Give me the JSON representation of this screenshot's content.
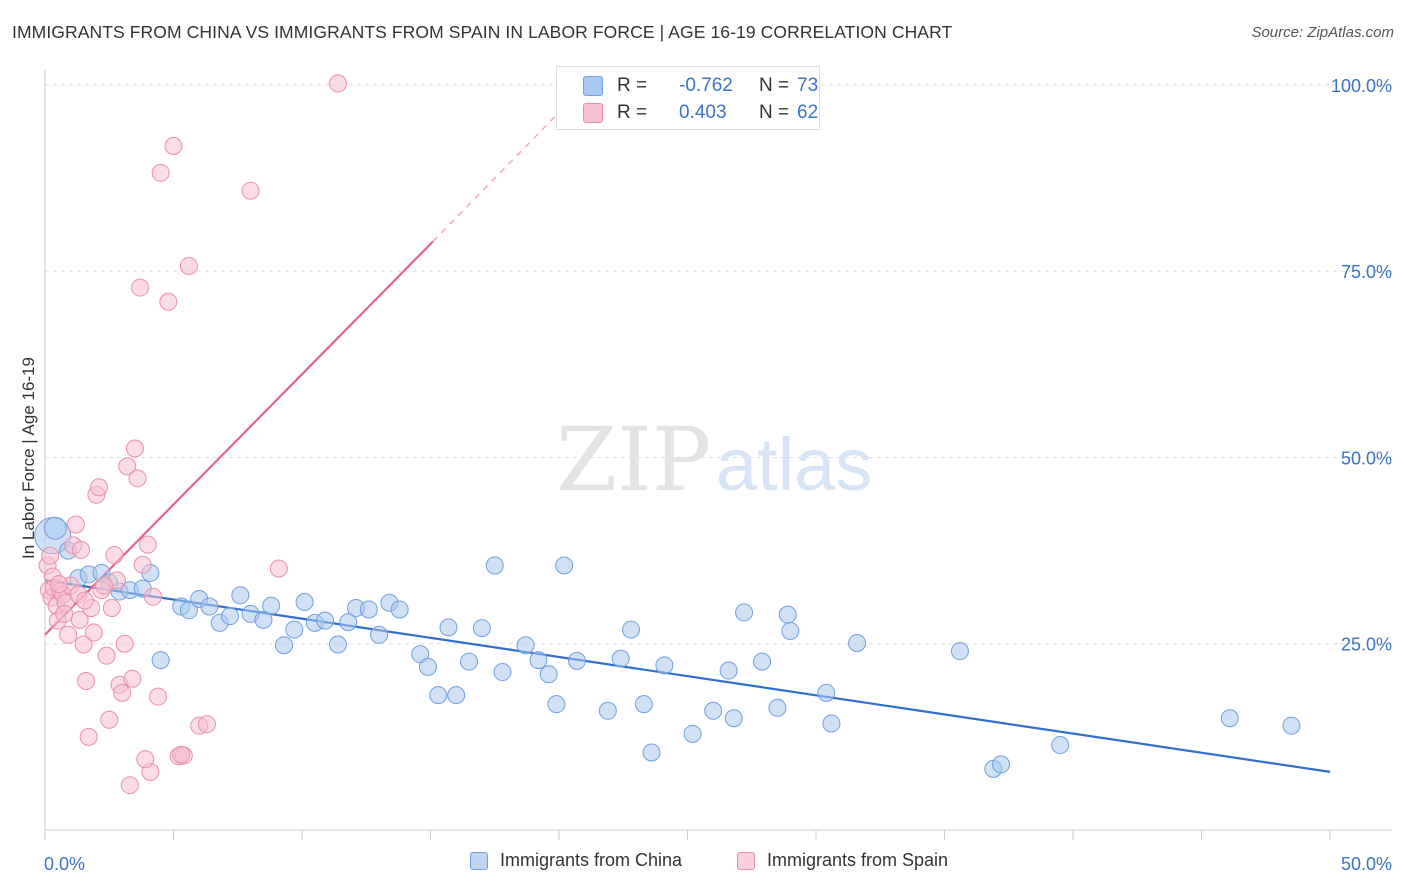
{
  "title": "IMMIGRANTS FROM CHINA VS IMMIGRANTS FROM SPAIN IN LABOR FORCE | AGE 16-19 CORRELATION CHART",
  "source": "Source: ZipAtlas.com",
  "watermark": {
    "zip": "ZIP",
    "atlas": "atlas"
  },
  "legend_top": {
    "rows": [
      {
        "r_label": "R =",
        "r_value": "-0.762",
        "n_label": "N =",
        "n_value": "73",
        "color": "#a9c8ef",
        "border": "#6fa0dd"
      },
      {
        "r_label": "R =",
        "r_value": "0.403",
        "n_label": "N =",
        "n_value": "62",
        "color": "#f7c0d0",
        "border": "#ea8fab"
      }
    ]
  },
  "legend_bottom": {
    "items": [
      {
        "label": "Immigrants from China",
        "color": "#bcd5f3",
        "border": "#6fa0dd"
      },
      {
        "label": "Immigrants from Spain",
        "color": "#f9cfdc",
        "border": "#ea8fab"
      }
    ]
  },
  "chart_data": {
    "type": "scatter",
    "title": "IMMIGRANTS FROM CHINA VS IMMIGRANTS FROM SPAIN IN LABOR FORCE | AGE 16-19 CORRELATION CHART",
    "xlabel": "",
    "ylabel": "In Labor Force | Age 16-19",
    "xlim": [
      0,
      50
    ],
    "ylim": [
      0,
      102
    ],
    "x_tick_labels": [
      "0.0%",
      "50.0%"
    ],
    "y_ticks": [
      25,
      50,
      75,
      100
    ],
    "y_tick_labels": [
      "25.0%",
      "50.0%",
      "75.0%",
      "100.0%"
    ],
    "grid": true,
    "series": [
      {
        "name": "Immigrants from China",
        "color": "#6fa0dd",
        "fill": "#a9c8ef",
        "points": [
          [
            0.3,
            39.5
          ],
          [
            0.4,
            40.5
          ],
          [
            0.9,
            37.5
          ],
          [
            1.3,
            33.8
          ],
          [
            1.7,
            34.3
          ],
          [
            2.2,
            34.5
          ],
          [
            2.5,
            33.2
          ],
          [
            2.9,
            32.0
          ],
          [
            3.3,
            32.2
          ],
          [
            3.8,
            32.4
          ],
          [
            4.1,
            34.5
          ],
          [
            4.5,
            22.8
          ],
          [
            5.3,
            30.0
          ],
          [
            5.6,
            29.5
          ],
          [
            6.0,
            31.0
          ],
          [
            6.4,
            30.0
          ],
          [
            6.8,
            27.8
          ],
          [
            7.2,
            28.7
          ],
          [
            7.6,
            31.5
          ],
          [
            8.0,
            29.0
          ],
          [
            8.5,
            28.2
          ],
          [
            8.8,
            30.1
          ],
          [
            9.3,
            24.8
          ],
          [
            9.7,
            26.9
          ],
          [
            10.1,
            30.6
          ],
          [
            10.5,
            27.8
          ],
          [
            10.9,
            28.1
          ],
          [
            11.4,
            24.9
          ],
          [
            11.8,
            27.9
          ],
          [
            12.1,
            29.8
          ],
          [
            12.6,
            29.6
          ],
          [
            13.0,
            26.2
          ],
          [
            13.4,
            30.5
          ],
          [
            13.8,
            29.6
          ],
          [
            14.6,
            23.6
          ],
          [
            14.9,
            21.9
          ],
          [
            15.3,
            18.1
          ],
          [
            15.7,
            27.2
          ],
          [
            16.0,
            18.1
          ],
          [
            16.5,
            22.6
          ],
          [
            17.0,
            27.1
          ],
          [
            17.5,
            35.5
          ],
          [
            17.8,
            21.2
          ],
          [
            18.7,
            24.8
          ],
          [
            19.2,
            22.8
          ],
          [
            19.6,
            20.9
          ],
          [
            19.9,
            16.9
          ],
          [
            20.2,
            35.5
          ],
          [
            20.7,
            22.7
          ],
          [
            21.9,
            16.0
          ],
          [
            22.4,
            23.0
          ],
          [
            22.8,
            26.9
          ],
          [
            23.3,
            16.9
          ],
          [
            23.6,
            10.4
          ],
          [
            24.1,
            22.1
          ],
          [
            25.2,
            12.9
          ],
          [
            26.0,
            16.0
          ],
          [
            26.6,
            21.4
          ],
          [
            26.8,
            15.0
          ],
          [
            27.2,
            29.2
          ],
          [
            27.9,
            22.6
          ],
          [
            28.5,
            16.4
          ],
          [
            28.9,
            28.9
          ],
          [
            29.0,
            26.7
          ],
          [
            30.4,
            18.4
          ],
          [
            30.6,
            14.3
          ],
          [
            31.6,
            25.1
          ],
          [
            35.6,
            24.0
          ],
          [
            36.9,
            8.2
          ],
          [
            37.2,
            8.8
          ],
          [
            39.5,
            11.4
          ],
          [
            46.1,
            15.0
          ],
          [
            48.5,
            14.0
          ]
        ],
        "trend": {
          "x": [
            0,
            50
          ],
          "y": [
            33.5,
            7.8
          ]
        }
      },
      {
        "name": "Immigrants from Spain",
        "color": "#ea8fab",
        "fill": "#f7c0d0",
        "points": [
          [
            0.1,
            35.5
          ],
          [
            0.15,
            32.2
          ],
          [
            0.2,
            36.8
          ],
          [
            0.25,
            31.2
          ],
          [
            0.3,
            34.0
          ],
          [
            0.35,
            32.5
          ],
          [
            0.45,
            30.1
          ],
          [
            0.5,
            28.1
          ],
          [
            0.6,
            32.0
          ],
          [
            0.7,
            31.6
          ],
          [
            0.8,
            30.5
          ],
          [
            0.9,
            26.2
          ],
          [
            1.0,
            32.8
          ],
          [
            1.1,
            38.2
          ],
          [
            1.2,
            41.0
          ],
          [
            1.3,
            31.6
          ],
          [
            1.35,
            28.2
          ],
          [
            1.4,
            37.6
          ],
          [
            1.5,
            24.9
          ],
          [
            1.6,
            20.0
          ],
          [
            1.7,
            12.5
          ],
          [
            1.8,
            29.8
          ],
          [
            1.9,
            26.5
          ],
          [
            2.0,
            45.0
          ],
          [
            2.1,
            46.0
          ],
          [
            2.2,
            32.2
          ],
          [
            2.4,
            23.4
          ],
          [
            2.5,
            14.8
          ],
          [
            2.6,
            29.8
          ],
          [
            2.8,
            33.5
          ],
          [
            2.9,
            19.5
          ],
          [
            3.0,
            18.4
          ],
          [
            3.1,
            25.0
          ],
          [
            3.2,
            48.8
          ],
          [
            3.3,
            6.0
          ],
          [
            3.4,
            20.3
          ],
          [
            3.5,
            51.2
          ],
          [
            3.6,
            47.2
          ],
          [
            3.7,
            72.8
          ],
          [
            3.8,
            35.6
          ],
          [
            4.0,
            38.3
          ],
          [
            4.1,
            7.8
          ],
          [
            4.2,
            31.3
          ],
          [
            4.4,
            17.9
          ],
          [
            4.5,
            88.2
          ],
          [
            4.8,
            70.9
          ],
          [
            5.0,
            91.8
          ],
          [
            5.2,
            9.9
          ],
          [
            5.4,
            10.0
          ],
          [
            5.6,
            75.7
          ],
          [
            6.0,
            14.0
          ],
          [
            6.3,
            14.2
          ],
          [
            8.0,
            85.8
          ],
          [
            9.1,
            35.1
          ],
          [
            11.4,
            100.2
          ],
          [
            0.55,
            33.0
          ],
          [
            0.75,
            29.0
          ],
          [
            1.55,
            30.8
          ],
          [
            2.3,
            32.8
          ],
          [
            2.7,
            36.9
          ],
          [
            3.9,
            9.5
          ],
          [
            5.3,
            10.1
          ]
        ],
        "trend": {
          "x": [
            0,
            15.1
          ],
          "y": [
            26.2,
            79.0
          ]
        },
        "trend_dashed": {
          "x": [
            15.1,
            20.2
          ],
          "y": [
            79.0,
            97.0
          ]
        }
      }
    ]
  }
}
